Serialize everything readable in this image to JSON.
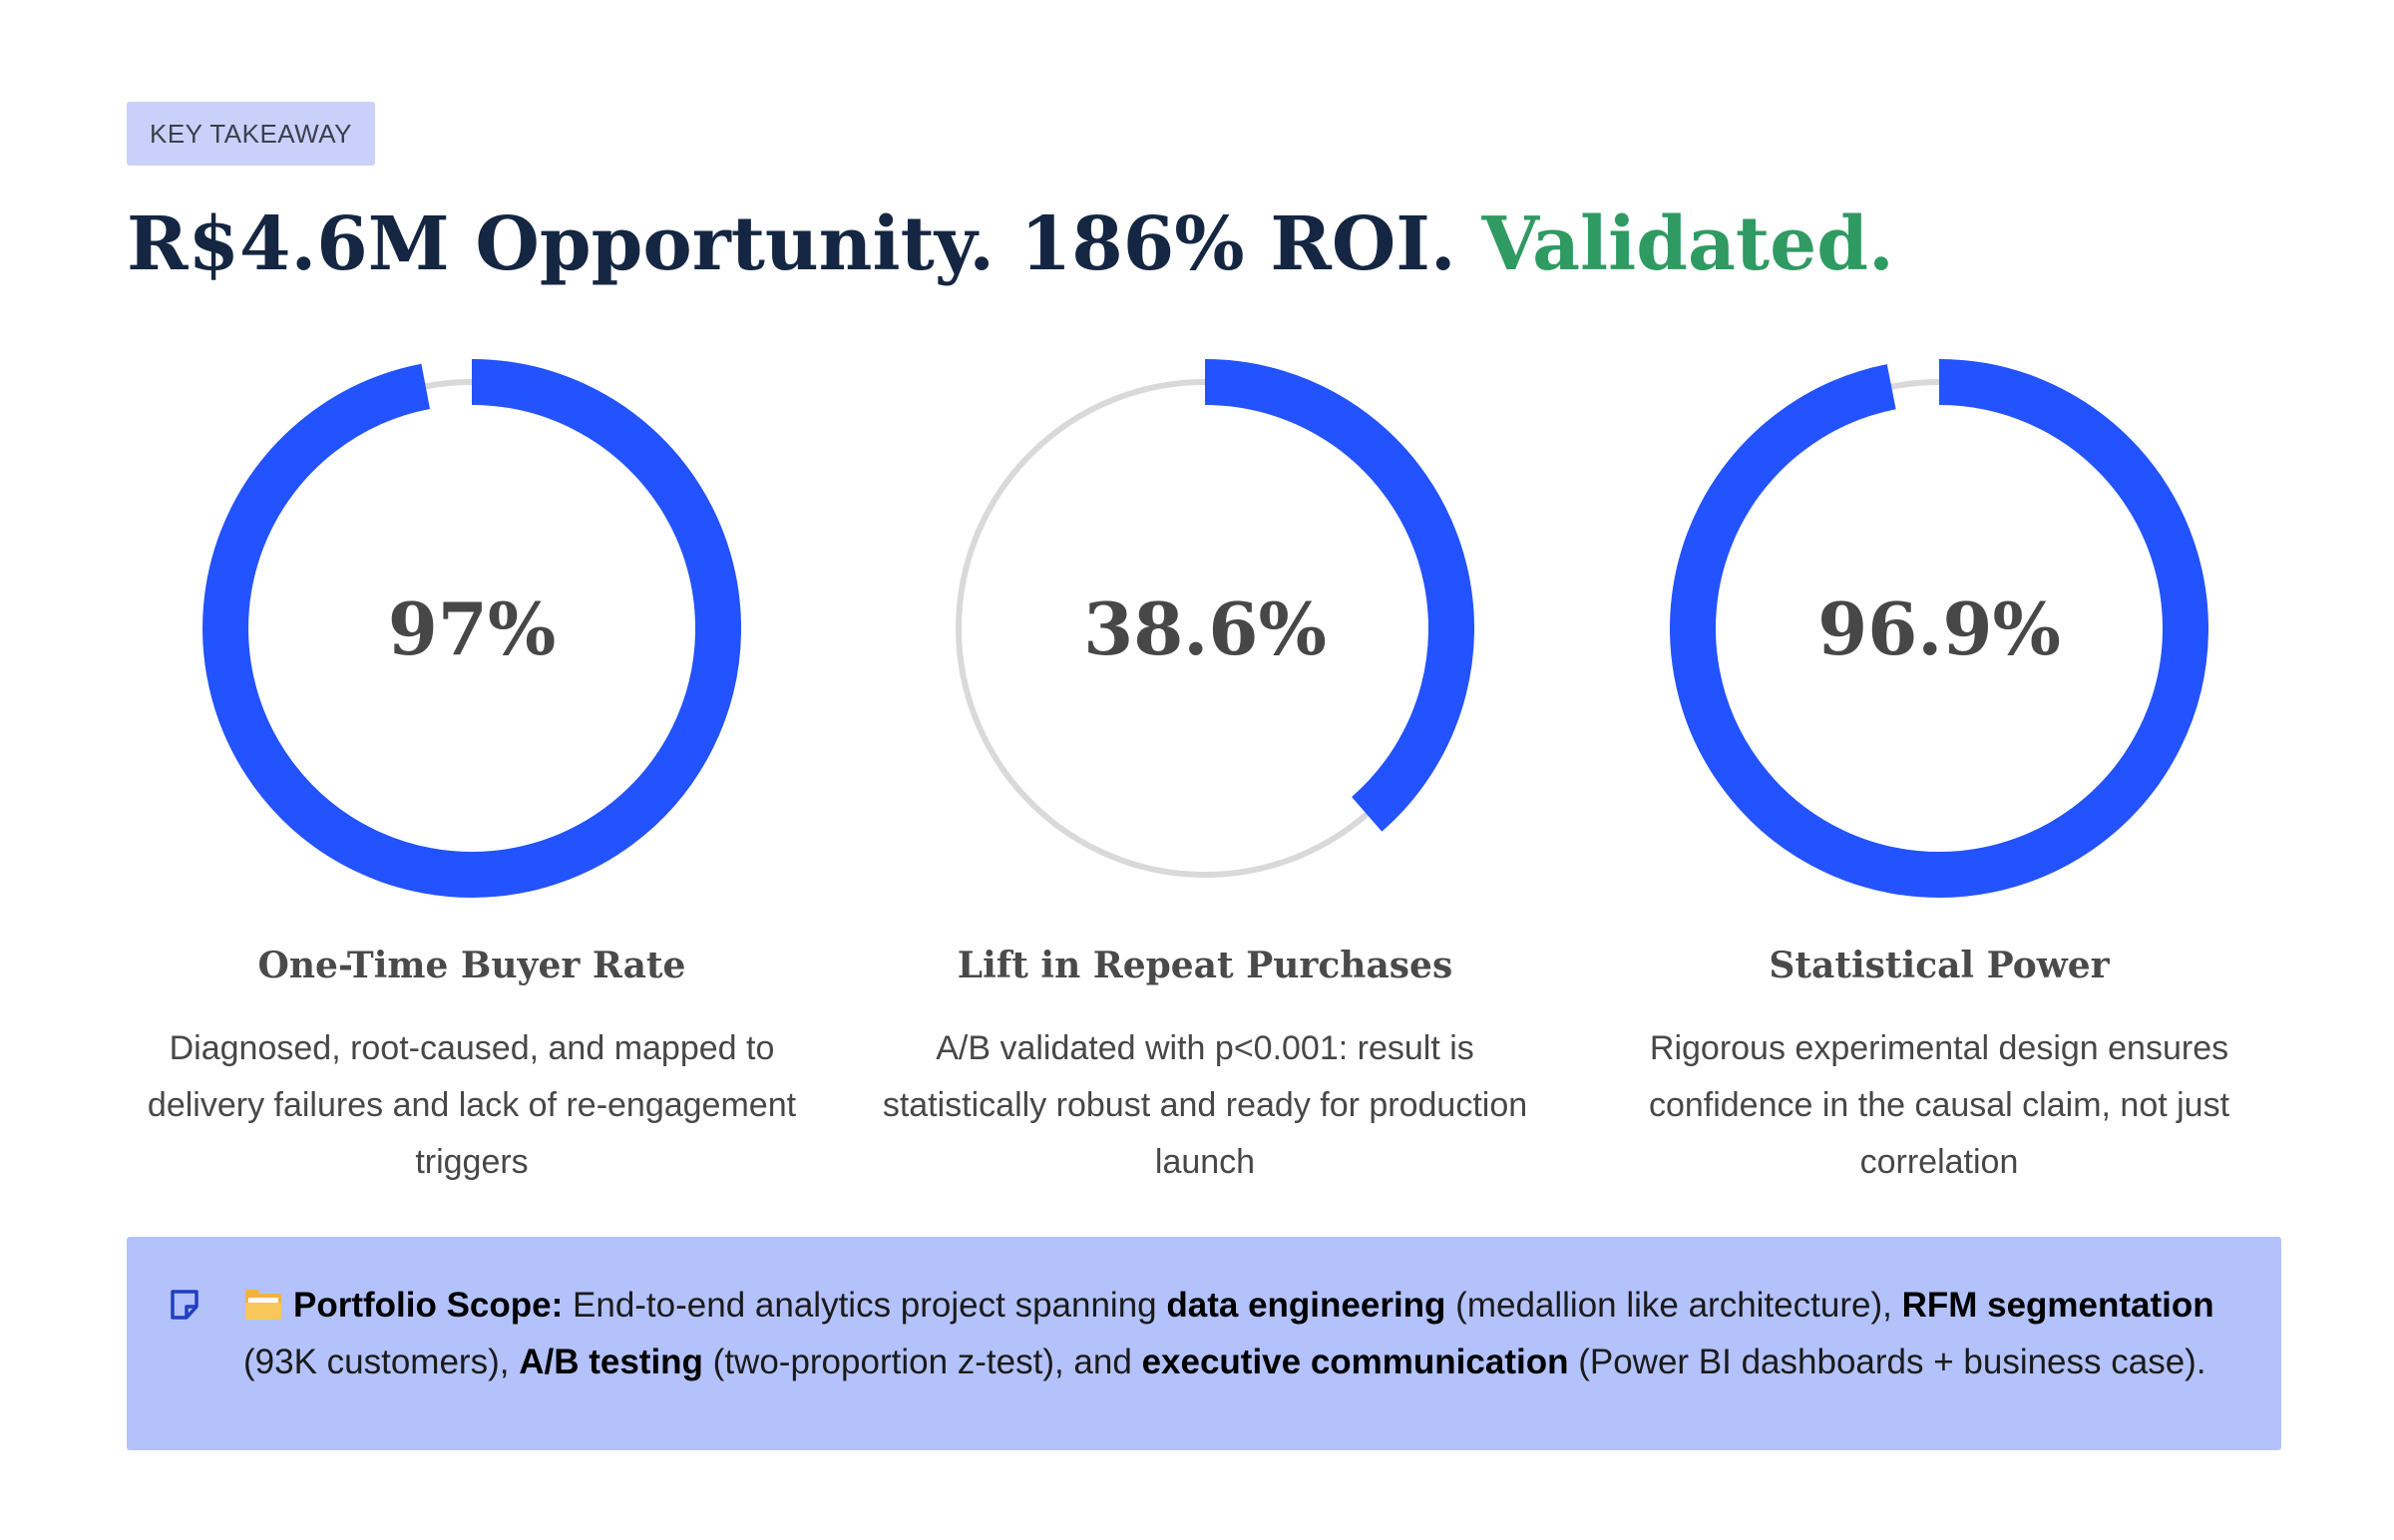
{
  "badge": {
    "label": "KEY TAKEAWAY"
  },
  "headline": {
    "main": "R$4.6M Opportunity. 186% ROI.",
    "accent": "Validated."
  },
  "metrics": [
    {
      "value_label": "97%",
      "progress": 0.97,
      "title": "One-Time Buyer Rate",
      "description": "Diagnosed, root-caused, and mapped to delivery failures and lack of re-engagement triggers"
    },
    {
      "value_label": "38.6%",
      "progress": 0.386,
      "title": "Lift in Repeat Purchases",
      "description": "A/B validated with p<0.001: result is statistically robust and ready for production launch"
    },
    {
      "value_label": "96.9%",
      "progress": 0.969,
      "title": "Statistical Power",
      "description": "Rigorous experimental design ensures confidence in the causal claim, not just correlation"
    }
  ],
  "scope": {
    "label": "Portfolio Scope:",
    "t1": " End-to-end analytics project spanning ",
    "b1": "data engineering",
    "t2": " (medallion like architecture), ",
    "b2": "RFM segmentation",
    "t3": " (93K customers), ",
    "b3": "A/B testing",
    "t4": " (two-proportion z-test), and ",
    "b4": "executive communication",
    "t5": " (Power BI dashboards + business case)."
  },
  "colors": {
    "ring_fill": "#2352ff",
    "ring_track": "#d9d9d9",
    "accent_green": "#2f9a62",
    "scope_background": "#b3c2fb",
    "badge_background": "#c9d1fb"
  },
  "icons": {
    "note": "sticky-note-icon",
    "folder": "card-index-dividers-icon"
  }
}
